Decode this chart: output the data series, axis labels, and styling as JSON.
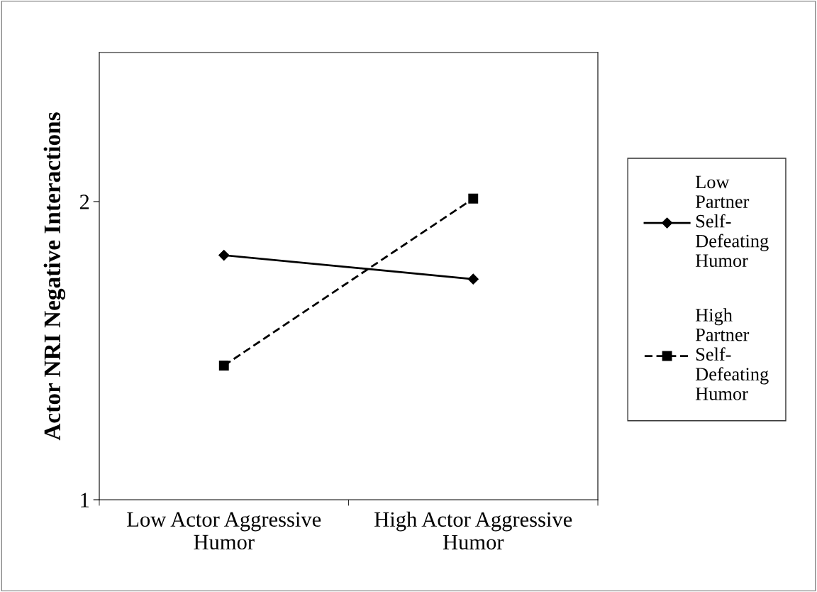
{
  "chart_data": {
    "type": "line",
    "ylabel": "Actor NRI Negative Interactions",
    "categories": [
      "Low Actor Aggressive Humor",
      "High Actor Aggressive Humor"
    ],
    "series": [
      {
        "name": "Low Partner Self-Defeating Humor",
        "color": "#000000",
        "values": [
          1.82,
          1.74
        ],
        "marker": "diamond",
        "line_style": "solid"
      },
      {
        "name": "High Partner Self-Defeating Humor",
        "color": "#000000",
        "values": [
          1.45,
          2.01
        ],
        "marker": "square",
        "line_style": "dashed"
      }
    ],
    "ylim": [
      1,
      2.5
    ],
    "yticks": [
      1,
      2
    ],
    "grid": false,
    "legend": "right"
  }
}
